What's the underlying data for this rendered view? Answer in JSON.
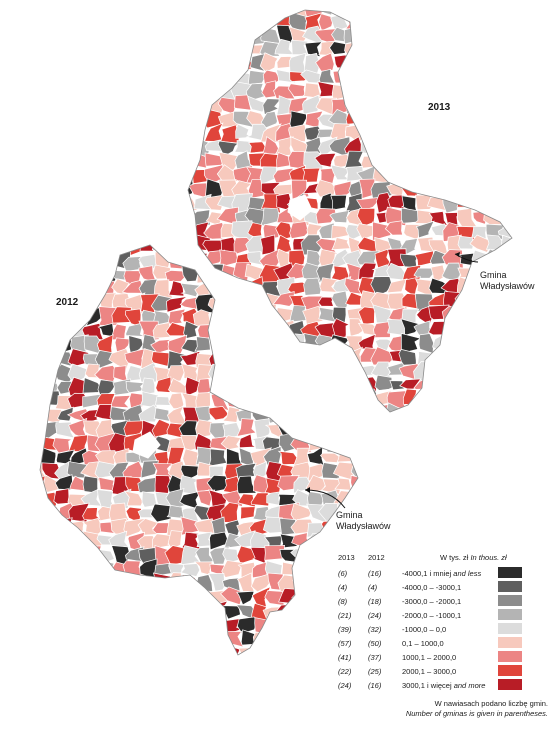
{
  "maps": [
    {
      "year_label": "2013",
      "callout": {
        "line1": "Gmina",
        "line2": "Władysławów"
      }
    },
    {
      "year_label": "2012",
      "callout": {
        "line1": "Gmina",
        "line2": "Władysławów"
      }
    }
  ],
  "legend": {
    "col_2013": "2013",
    "col_2012": "2012",
    "unit_pl": "W tys. zł",
    "unit_en": "In thous. zł",
    "classes": [
      {
        "c2013": "(6)",
        "c2012": "(16)",
        "label": "-4000,1 i mniej",
        "label_en": "and less",
        "color": "#2b2b2b"
      },
      {
        "c2013": "(4)",
        "c2012": "(4)",
        "label": "-4000,0 – -3000,1",
        "label_en": "",
        "color": "#5f5f5f"
      },
      {
        "c2013": "(8)",
        "c2012": "(18)",
        "label": "-3000,0 – -2000,1",
        "label_en": "",
        "color": "#8c8c8c"
      },
      {
        "c2013": "(21)",
        "c2012": "(24)",
        "label": "-2000,0 – -1000,1",
        "label_en": "",
        "color": "#b4b4b4"
      },
      {
        "c2013": "(39)",
        "c2012": "(32)",
        "label": "-1000,0 – 0,0",
        "label_en": "",
        "color": "#dcdcdc"
      },
      {
        "c2013": "(57)",
        "c2012": "(50)",
        "label": "0,1 – 1000,0",
        "label_en": "",
        "color": "#f7c9bd"
      },
      {
        "c2013": "(41)",
        "c2012": "(37)",
        "label": "1000,1 – 2000,0",
        "label_en": "",
        "color": "#ec8584"
      },
      {
        "c2013": "(22)",
        "c2012": "(25)",
        "label": "2000,1 – 3000,0",
        "label_en": "",
        "color": "#e0453b"
      },
      {
        "c2013": "(24)",
        "c2012": "(16)",
        "label": "3000,1 i więcej",
        "label_en": "and more",
        "color": "#b81d26"
      }
    ]
  },
  "notes": {
    "pl": "W nawiasach podano liczbę gmin.",
    "en": "Number of gminas is given in parentheses."
  }
}
